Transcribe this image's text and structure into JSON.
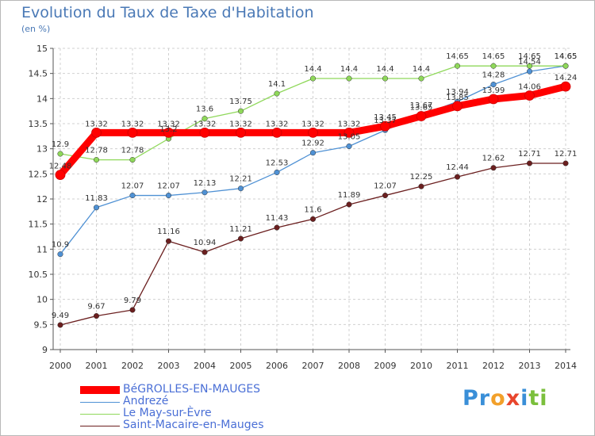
{
  "title": "Evolution du Taux de Taxe d'Habitation",
  "subtitle": "(en %)",
  "logo": {
    "letters": [
      "P",
      "r",
      "o",
      "x",
      "i",
      "t",
      "i"
    ],
    "colors": [
      "#3a8fd8",
      "#3a8fd8",
      "#f2a02a",
      "#e8452c",
      "#3a8fd8",
      "#7bbf3c",
      "#7bbf3c"
    ]
  },
  "chart_data": {
    "type": "line",
    "title": "Evolution du Taux de Taxe d'Habitation",
    "ylabel": "(en %)",
    "xlabel": "",
    "x": [
      "2000",
      "2001",
      "2002",
      "2003",
      "2004",
      "2005",
      "2006",
      "2007",
      "2008",
      "2009",
      "2010",
      "2011",
      "2012",
      "2013",
      "2014"
    ],
    "ylim": [
      9,
      15
    ],
    "yticks": [
      "9",
      "9.5",
      "10",
      "10.5",
      "11",
      "11.5",
      "12",
      "12.5",
      "13",
      "13.5",
      "14",
      "14.5",
      "15"
    ],
    "grid": true,
    "legend_position": "bottom-left",
    "series": [
      {
        "name": "BéGROLLES-EN-MAUGES",
        "color": "#ff0000",
        "values": [
          12.48,
          13.32,
          13.32,
          13.32,
          13.32,
          13.32,
          13.32,
          13.32,
          13.32,
          13.45,
          13.65,
          13.85,
          13.99,
          14.06,
          14.24
        ],
        "labels": [
          "12.48",
          "13.32",
          "13.32",
          "13.32",
          "13.32",
          "13.32",
          "13.32",
          "13.32",
          "13.32",
          "13.45",
          "13.65",
          "13.85",
          "13.99",
          "14.06",
          "14.24"
        ]
      },
      {
        "name": "Andrezé",
        "color": "#4f91d4",
        "values": [
          10.9,
          11.83,
          12.07,
          12.07,
          12.13,
          12.21,
          12.53,
          12.92,
          13.05,
          13.37,
          13.67,
          13.94,
          14.28,
          14.54,
          14.65
        ],
        "labels": [
          "10.9",
          "11.83",
          "12.07",
          "12.07",
          "12.13",
          "12.21",
          "12.53",
          "12.92",
          "13.05",
          "13.37",
          "13.67",
          "13.94",
          "14.28",
          "14.54",
          "14.65"
        ]
      },
      {
        "name": "Le May-sur-Èvre",
        "color": "#8fd85a",
        "values": [
          12.9,
          12.78,
          12.78,
          13.2,
          13.6,
          13.75,
          14.1,
          14.4,
          14.4,
          14.4,
          14.4,
          14.65,
          14.65,
          14.65,
          14.65
        ],
        "labels": [
          "12.9",
          "12.78",
          "12.78",
          "13.2",
          "13.6",
          "13.75",
          "14.1",
          "14.4",
          "14.4",
          "14.4",
          "14.4",
          "14.65",
          "14.65",
          "14.65",
          "14.65"
        ]
      },
      {
        "name": "Saint-Macaire-en-Mauges",
        "color": "#6b1f1f",
        "values": [
          9.49,
          9.67,
          9.79,
          11.16,
          10.94,
          11.21,
          11.43,
          11.6,
          11.89,
          12.07,
          12.25,
          12.44,
          12.62,
          12.71,
          12.71
        ],
        "labels": [
          "9.49",
          "9.67",
          "9.79",
          "11.16",
          "10.94",
          "11.21",
          "11.43",
          "11.6",
          "11.89",
          "12.07",
          "12.25",
          "12.44",
          "12.62",
          "12.71",
          "12.71"
        ]
      }
    ]
  }
}
